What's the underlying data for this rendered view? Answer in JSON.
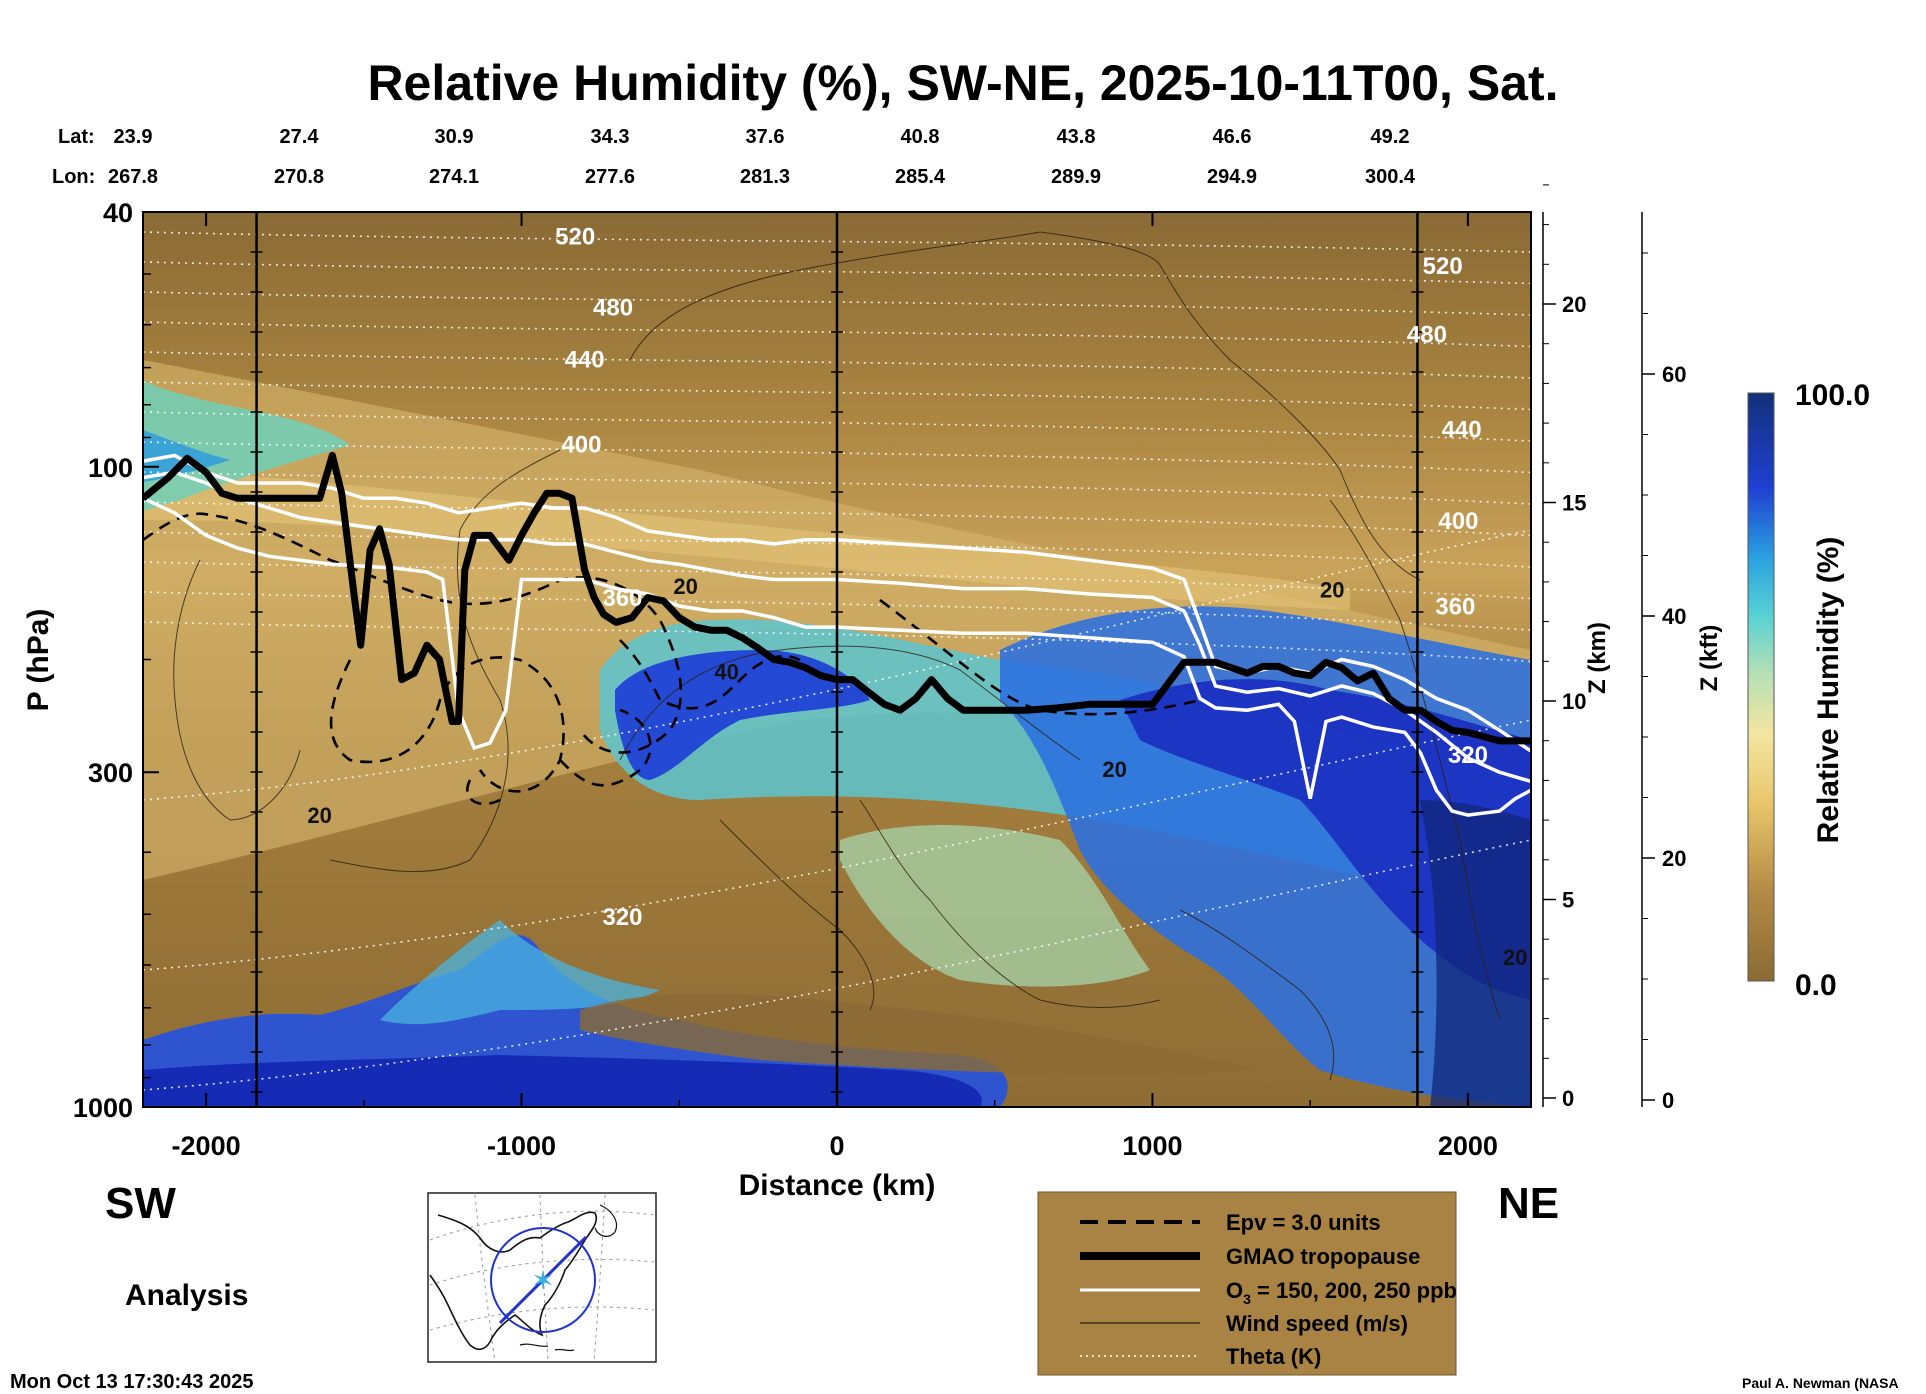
{
  "chart_data": {
    "type": "heatmap",
    "title": "Relative Humidity (%), SW-NE, 2025-10-11T00, Sat.",
    "xlabel": "Distance (km)",
    "ylabel": "P (hPa)",
    "right_axis_1_label": "Z (km)",
    "right_axis_2_label": "Z (kft)",
    "colorbar_label": "Relative Humidity (%)",
    "colorbar_range": [
      0.0,
      100.0
    ],
    "colorbar_max_label": "100.0",
    "colorbar_min_label": "0.0",
    "xlim": [
      -2200,
      2200
    ],
    "ylim": [
      1000,
      40
    ],
    "x_ticks": [
      {
        "value": -2000,
        "label": "-2000"
      },
      {
        "value": -1000,
        "label": "-1000"
      },
      {
        "value": 0,
        "label": "0"
      },
      {
        "value": 1000,
        "label": "1000"
      },
      {
        "value": 2000,
        "label": "2000"
      }
    ],
    "y_ticks": [
      {
        "value": 40,
        "label": "40"
      },
      {
        "value": 100,
        "label": "100"
      },
      {
        "value": 300,
        "label": "300"
      },
      {
        "value": 1000,
        "label": "1000"
      }
    ],
    "z_km_ticks": [
      {
        "value": 0,
        "label": "0"
      },
      {
        "value": 5,
        "label": "5"
      },
      {
        "value": 10,
        "label": "10"
      },
      {
        "value": 15,
        "label": "15"
      },
      {
        "value": 20,
        "label": "20"
      }
    ],
    "z_kft_ticks": [
      {
        "value": 0,
        "label": "0"
      },
      {
        "value": 20,
        "label": "20"
      },
      {
        "value": 40,
        "label": "40"
      },
      {
        "value": 60,
        "label": "60"
      }
    ],
    "lat_label": "Lat:",
    "lon_label": "Lon:",
    "lat": [
      "23.9",
      "27.4",
      "30.9",
      "34.3",
      "37.6",
      "40.8",
      "43.8",
      "46.6",
      "49.2"
    ],
    "lon": [
      "267.8",
      "270.8",
      "274.1",
      "277.6",
      "281.3",
      "285.4",
      "289.9",
      "294.9",
      "300.4"
    ],
    "vertical_markers_km": [
      -1840,
      0,
      1840
    ],
    "theta_levels_left": [
      {
        "label": "520",
        "x": -830,
        "p": 45
      },
      {
        "label": "480",
        "x": -710,
        "p": 58
      },
      {
        "label": "440",
        "x": -800,
        "p": 70
      },
      {
        "label": "400",
        "x": -810,
        "p": 95
      },
      {
        "label": "360",
        "x": -680,
        "p": 165
      },
      {
        "label": "320",
        "x": -680,
        "p": 520
      }
    ],
    "theta_levels_right": [
      {
        "label": "520",
        "x": 1920,
        "p": 50
      },
      {
        "label": "480",
        "x": 1870,
        "p": 64
      },
      {
        "label": "440",
        "x": 1980,
        "p": 90
      },
      {
        "label": "400",
        "x": 1970,
        "p": 125
      },
      {
        "label": "360",
        "x": 1960,
        "p": 170
      },
      {
        "label": "320",
        "x": 2000,
        "p": 290
      }
    ],
    "wind_speed_labels": [
      {
        "label": "20",
        "x": -1640,
        "p": 360
      },
      {
        "label": "20",
        "x": -480,
        "p": 158
      },
      {
        "label": "40",
        "x": -350,
        "p": 215
      },
      {
        "label": "20",
        "x": 880,
        "p": 305
      },
      {
        "label": "20",
        "x": 1570,
        "p": 160
      },
      {
        "label": "20",
        "x": 2150,
        "p": 600
      }
    ],
    "tropopause_gmao": {
      "x": [
        -2200,
        -2120,
        -2060,
        -2000,
        -1950,
        -1900,
        -1800,
        -1700,
        -1640,
        -1600,
        -1570,
        -1530,
        -1510,
        -1480,
        -1450,
        -1420,
        -1380,
        -1340,
        -1300,
        -1260,
        -1220,
        -1200,
        -1180,
        -1150,
        -1100,
        -1040,
        -1000,
        -960,
        -920,
        -880,
        -840,
        -800,
        -770,
        -740,
        -700,
        -650,
        -600,
        -550,
        -500,
        -450,
        -400,
        -350,
        -300,
        -250,
        -200,
        -150,
        -100,
        -50,
        0,
        50,
        100,
        150,
        200,
        250,
        300,
        350,
        400,
        450,
        500,
        600,
        700,
        800,
        900,
        1000,
        1050,
        1100,
        1150,
        1200,
        1250,
        1300,
        1350,
        1400,
        1450,
        1500,
        1550,
        1600,
        1650,
        1700,
        1750,
        1800,
        1850,
        1900,
        1950,
        2000,
        2100,
        2200
      ],
      "p": [
        112,
        104,
        97,
        102,
        110,
        112,
        112,
        112,
        112,
        96,
        110,
        160,
        190,
        135,
        125,
        142,
        215,
        210,
        190,
        200,
        250,
        250,
        145,
        128,
        128,
        140,
        128,
        118,
        110,
        110,
        112,
        145,
        160,
        170,
        175,
        172,
        160,
        162,
        172,
        178,
        180,
        180,
        185,
        192,
        200,
        202,
        206,
        212,
        215,
        215,
        225,
        235,
        240,
        230,
        215,
        230,
        240,
        240,
        240,
        240,
        238,
        235,
        235,
        235,
        218,
        202,
        202,
        202,
        206,
        210,
        205,
        205,
        210,
        212,
        202,
        206,
        216,
        210,
        230,
        240,
        240,
        250,
        258,
        260,
        268,
        268
      ]
    },
    "ozone_150": {
      "x": [
        -2200,
        -2100,
        -2000,
        -1900,
        -1800,
        -1700,
        -1600,
        -1500,
        -1400,
        -1300,
        -1200,
        -1100,
        -1000,
        -900,
        -800,
        -700,
        -600,
        -500,
        -400,
        -300,
        -200,
        -100,
        0,
        200,
        400,
        600,
        800,
        1000,
        1100,
        1150,
        1200,
        1300,
        1400,
        1500,
        1600,
        1700,
        1800,
        1900,
        2000,
        2100,
        2200
      ],
      "p": [
        98,
        96,
        102,
        106,
        106,
        106,
        108,
        112,
        112,
        114,
        118,
        116,
        114,
        116,
        116,
        120,
        126,
        128,
        130,
        130,
        132,
        130,
        130,
        132,
        134,
        136,
        140,
        144,
        150,
        175,
        205,
        210,
        205,
        210,
        200,
        205,
        215,
        230,
        240,
        258,
        278
      ]
    },
    "ozone_200": {
      "x": [
        -2200,
        -2100,
        -2000,
        -1900,
        -1800,
        -1700,
        -1600,
        -1500,
        -1400,
        -1300,
        -1200,
        -1100,
        -1000,
        -900,
        -800,
        -700,
        -600,
        -500,
        -400,
        -300,
        -200,
        -100,
        0,
        200,
        400,
        600,
        800,
        1000,
        1100,
        1150,
        1200,
        1300,
        1400,
        1500,
        1600,
        1700,
        1800,
        1900,
        2000,
        2100,
        2200
      ],
      "p": [
        104,
        102,
        106,
        112,
        116,
        120,
        122,
        124,
        126,
        128,
        130,
        130,
        130,
        132,
        132,
        136,
        140,
        142,
        145,
        148,
        150,
        150,
        150,
        152,
        155,
        155,
        158,
        160,
        168,
        190,
        220,
        225,
        222,
        228,
        220,
        226,
        240,
        260,
        285,
        300,
        310
      ]
    },
    "ozone_250": {
      "x": [
        -2200,
        -2100,
        -2000,
        -1900,
        -1800,
        -1700,
        -1600,
        -1500,
        -1400,
        -1300,
        -1250,
        -1200,
        -1150,
        -1100,
        -1050,
        -1000,
        -900,
        -800,
        -700,
        -600,
        -500,
        -400,
        -300,
        -200,
        -100,
        0,
        200,
        400,
        600,
        800,
        1000,
        1100,
        1150,
        1200,
        1300,
        1400,
        1450,
        1500,
        1550,
        1600,
        1700,
        1800,
        1850,
        1900,
        1950,
        2000,
        2100,
        2150,
        2200
      ],
      "p": [
        112,
        118,
        128,
        134,
        138,
        140,
        142,
        143,
        144,
        146,
        150,
        240,
        275,
        270,
        240,
        150,
        150,
        150,
        155,
        158,
        165,
        168,
        168,
        172,
        178,
        178,
        180,
        182,
        182,
        185,
        188,
        198,
        230,
        238,
        240,
        235,
        250,
        330,
        250,
        246,
        255,
        260,
        280,
        320,
        345,
        350,
        345,
        330,
        320
      ]
    },
    "legend": {
      "epv": "Epv = 3.0 units",
      "tropopause": "GMAO tropopause",
      "ozone_prefix": "O",
      "ozone_sub": "3",
      "ozone_suffix": " = 150, 200, 250 ppb",
      "wind": "Wind speed (m/s)",
      "theta": "Theta (K)"
    },
    "left_label": "SW",
    "right_label": "NE",
    "analysis_label": "Analysis",
    "timestamp": "Mon Oct 13 17:30:43 2025",
    "credit": "Paul A. Newman (NASA"
  }
}
